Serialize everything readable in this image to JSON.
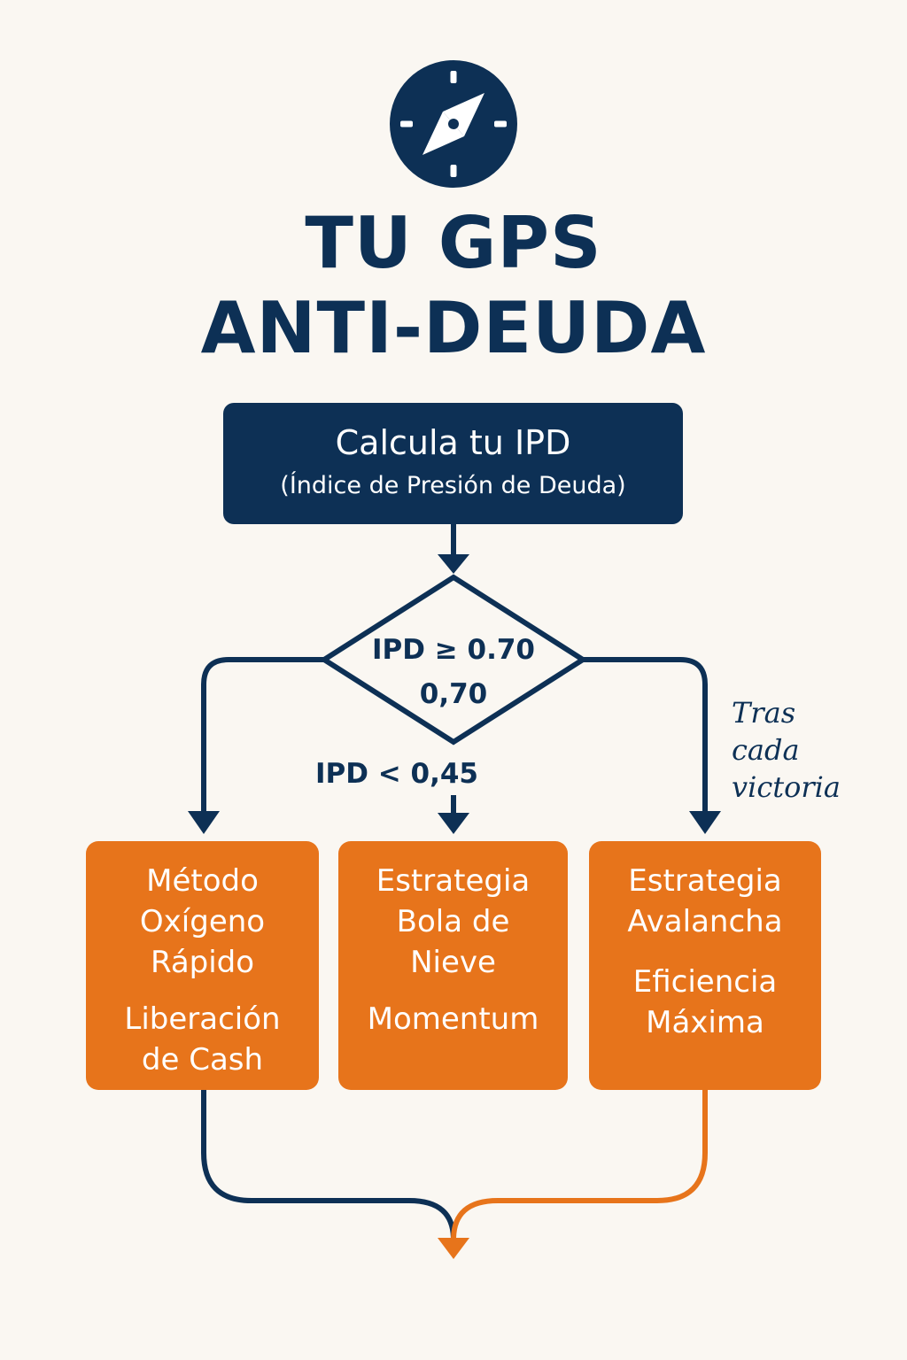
{
  "header": {
    "icon": "compass-icon",
    "title_line1": "TU GPS",
    "title_line2": "ANTI-DEUDA"
  },
  "start": {
    "title": "Calcula tu IPD",
    "subtitle": "(Índice de Presión de Deuda)"
  },
  "decision": {
    "line1": "IPD ≥ 0.70",
    "line2": "0,70"
  },
  "branch_label": "IPD < 0,45",
  "side_note": [
    "Tras",
    "cada",
    "victoria"
  ],
  "strategies": [
    {
      "name": [
        "Método",
        "Oxígeno",
        "Rápido"
      ],
      "subtitle": [
        "Liberación",
        "de Cash"
      ]
    },
    {
      "name": [
        "Estrategia",
        "Bola de",
        "Nieve"
      ],
      "subtitle": [
        "Momentum"
      ]
    },
    {
      "name": [
        "Estrategia",
        "Avalancha"
      ],
      "subtitle": [
        "Eficiencia",
        "Máxima"
      ]
    }
  ],
  "colors": {
    "navy": "#0d3055",
    "orange": "#e7741b",
    "background": "#faf7f2"
  }
}
